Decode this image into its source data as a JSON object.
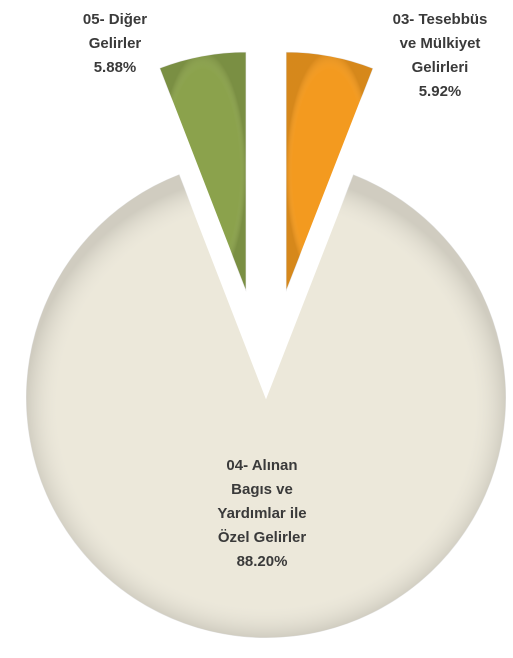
{
  "chart_data": {
    "type": "pie",
    "categories": [
      [
        "03- Tesebbüs",
        "ve Mülkiyet",
        "Gelirleri"
      ],
      [
        "04- Alınan",
        "Bagıs ve",
        "Yardımlar ile",
        "Özel Gelirler"
      ],
      [
        "05- Diğer",
        "Gelirler"
      ]
    ],
    "values": [
      5.92,
      88.2,
      5.88
    ],
    "value_labels": [
      "5.92%",
      "88.20%",
      "5.88%"
    ],
    "colors": [
      "#f39a1f",
      "#ece8da",
      "#8ba24c"
    ]
  }
}
